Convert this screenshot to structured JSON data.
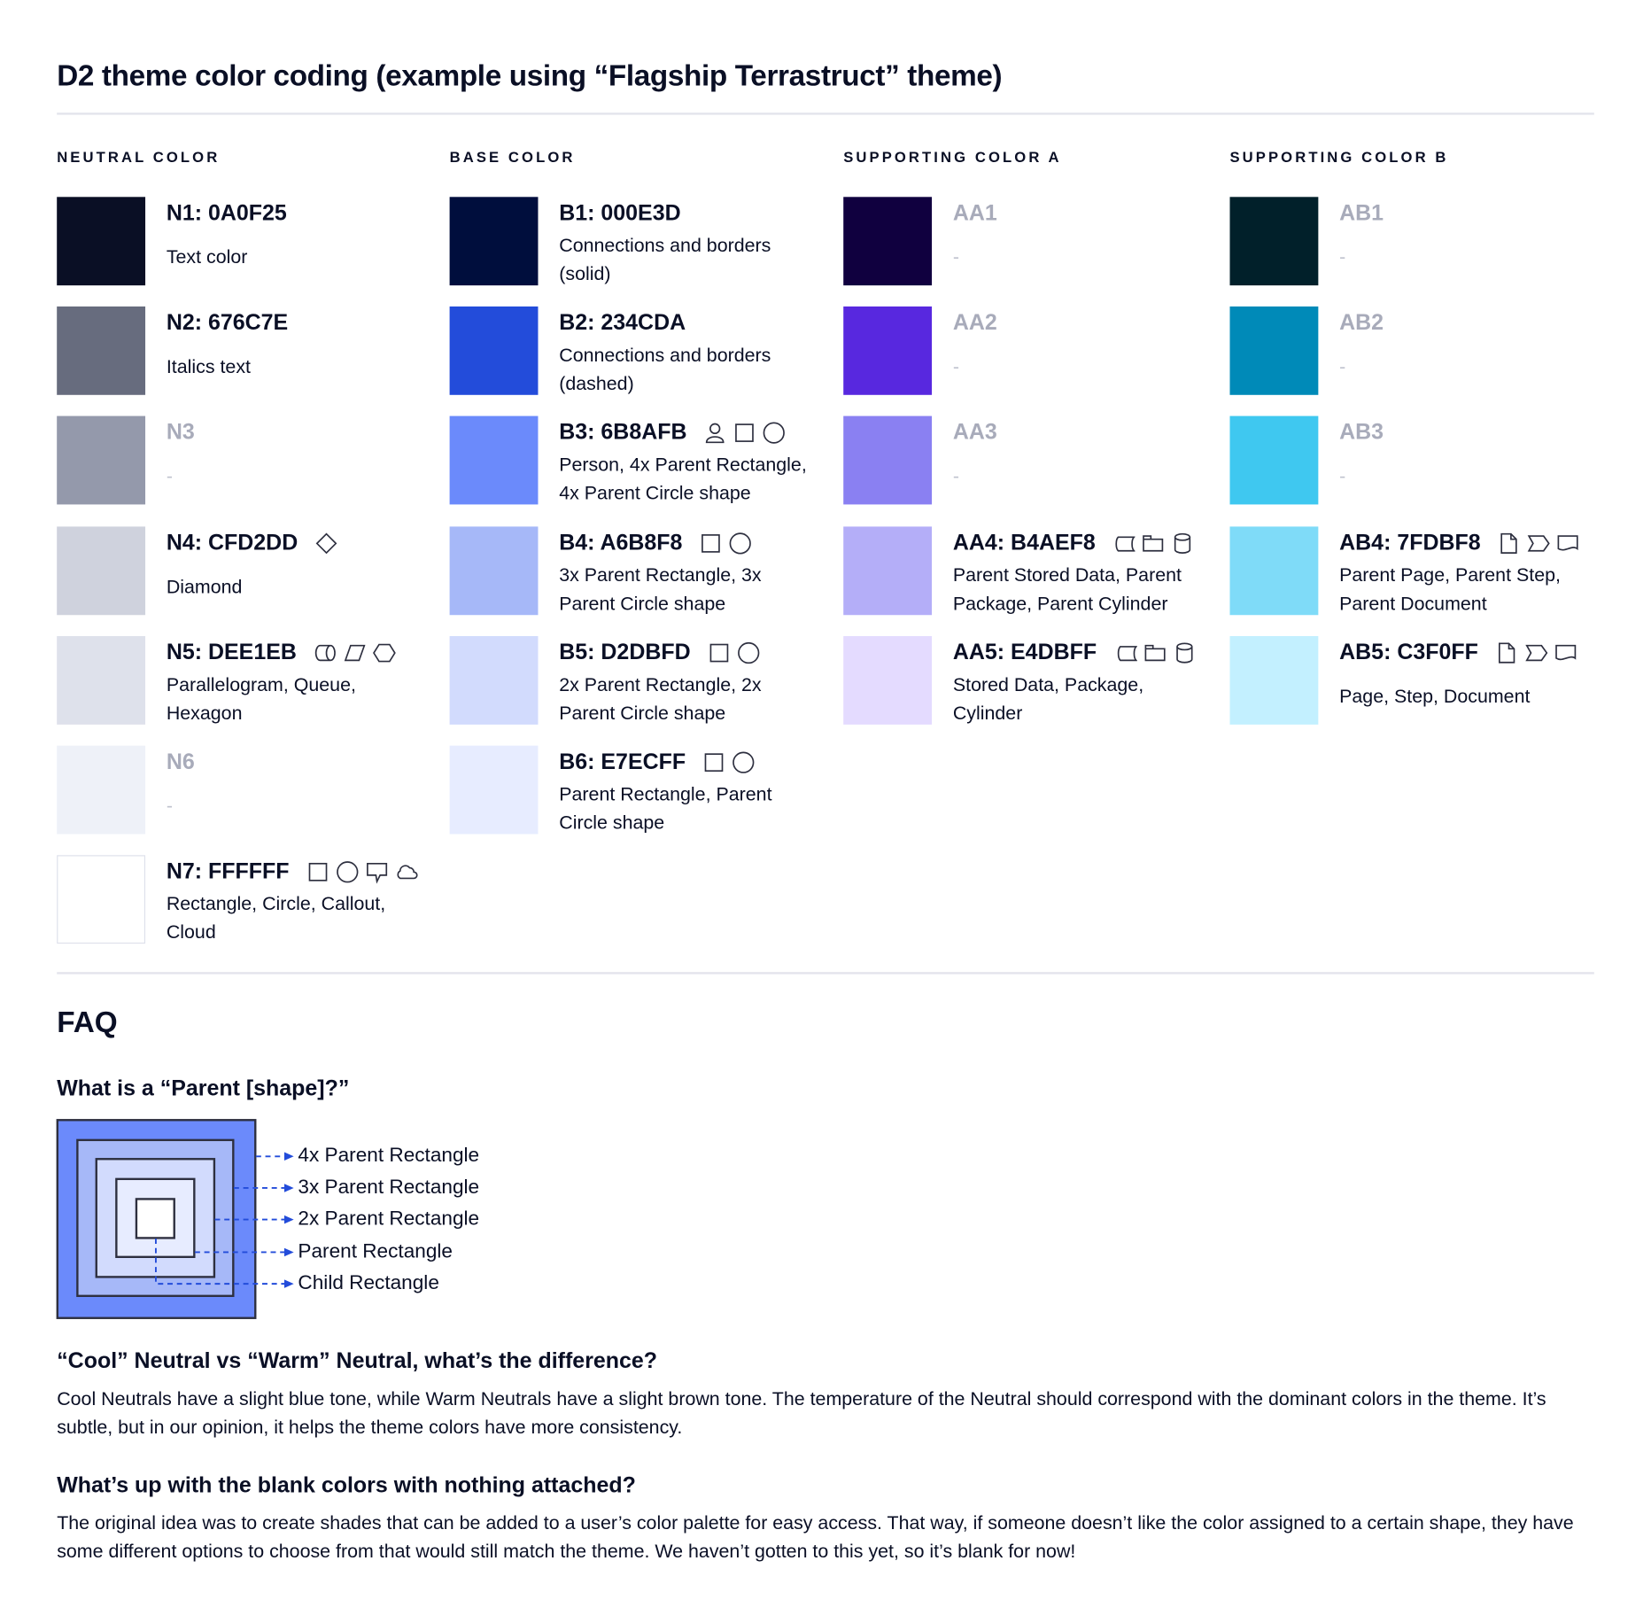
{
  "title": "D2 theme color coding (example using “Flagship Terrastruct” theme)",
  "columns": [
    {
      "header": "NEUTRAL COLOR",
      "rows": [
        {
          "label": "N1: 0A0F25",
          "desc": "Text color",
          "color": "#0A0F25",
          "icons": []
        },
        {
          "label": "N2: 676C7E",
          "desc": "Italics text",
          "color": "#676C7E",
          "icons": []
        },
        {
          "label": "N3",
          "desc": "-",
          "color": "#9499AB",
          "icons": [],
          "muted": true
        },
        {
          "label": "N4: CFD2DD",
          "desc": "Diamond",
          "color": "#CFD2DD",
          "icons": [
            "diamond"
          ]
        },
        {
          "label": "N5: DEE1EB",
          "desc": "Parallelogram, Queue, Hexagon",
          "color": "#DEE1EB",
          "icons": [
            "queue",
            "parallelogram",
            "hexagon"
          ]
        },
        {
          "label": "N6",
          "desc": "-",
          "color": "#EEF1F8",
          "icons": [],
          "muted": true
        },
        {
          "label": "N7: FFFFFF",
          "desc": "Rectangle, Circle, Callout, Cloud",
          "color": "#FFFFFF",
          "icons": [
            "rectangle",
            "circle",
            "callout",
            "cloud"
          ]
        }
      ]
    },
    {
      "header": "BASE COLOR",
      "rows": [
        {
          "label": "B1: 000E3D",
          "desc": "Connections and borders (solid)",
          "color": "#000E3D",
          "icons": []
        },
        {
          "label": "B2: 234CDA",
          "desc": "Connections and borders (dashed)",
          "color": "#234CDA",
          "icons": []
        },
        {
          "label": "B3: 6B8AFB",
          "desc": "Person, 4x Parent Rectangle, 4x Parent Circle shape",
          "color": "#6B8AFB",
          "icons": [
            "person",
            "rectangle",
            "circle"
          ]
        },
        {
          "label": "B4: A6B8F8",
          "desc": "3x Parent Rectangle, 3x Parent Circle shape",
          "color": "#A6B8F8",
          "icons": [
            "rectangle",
            "circle"
          ]
        },
        {
          "label": "B5: D2DBFD",
          "desc": "2x Parent Rectangle, 2x Parent Circle shape",
          "color": "#D2DBFD",
          "icons": [
            "rectangle",
            "circle"
          ]
        },
        {
          "label": "B6: E7ECFF",
          "desc": "Parent Rectangle, Parent Circle shape",
          "color": "#E7ECFF",
          "icons": [
            "rectangle",
            "circle"
          ]
        }
      ]
    },
    {
      "header": "SUPPORTING COLOR A",
      "rows": [
        {
          "label": "AA1",
          "desc": "-",
          "color": "#10003F",
          "icons": [],
          "muted": true
        },
        {
          "label": "AA2",
          "desc": "-",
          "color": "#5828DF",
          "icons": [],
          "muted": true
        },
        {
          "label": "AA3",
          "desc": "-",
          "color": "#8A80F2",
          "icons": [],
          "muted": true
        },
        {
          "label": "AA4: B4AEF8",
          "desc": "Parent Stored Data, Parent Package,  Parent Cylinder",
          "color": "#B4AEF8",
          "icons": [
            "stored-data",
            "package",
            "cylinder"
          ]
        },
        {
          "label": "AA5: E4DBFF",
          "desc": "Stored Data, Package, Cylinder",
          "color": "#E4DBFF",
          "icons": [
            "stored-data",
            "package",
            "cylinder"
          ]
        }
      ]
    },
    {
      "header": "SUPPORTING COLOR B",
      "rows": [
        {
          "label": "AB1",
          "desc": "-",
          "color": "#01202A",
          "icons": [],
          "muted": true
        },
        {
          "label": "AB2",
          "desc": "-",
          "color": "#008AB8",
          "icons": [],
          "muted": true
        },
        {
          "label": "AB3",
          "desc": "-",
          "color": "#3FC8F0",
          "icons": [],
          "muted": true
        },
        {
          "label": "AB4: 7FDBF8",
          "desc": "Parent Page, Parent Step, Parent Document",
          "color": "#7FDBF8",
          "icons": [
            "page",
            "step",
            "document"
          ]
        },
        {
          "label": "AB5: C3F0FF",
          "desc": "Page, Step, Document",
          "color": "#C3F0FF",
          "icons": [
            "page",
            "step",
            "document"
          ]
        }
      ]
    }
  ],
  "faq": {
    "heading": "FAQ",
    "q1": "What is a “Parent [shape]?”",
    "diagram_labels": [
      "4x Parent Rectangle",
      "3x Parent Rectangle",
      "2x Parent Rectangle",
      "Parent Rectangle",
      "Child Rectangle"
    ],
    "diagram_colors": [
      "#6B8AFB",
      "#A6B8F8",
      "#D2DBFD",
      "#E7ECFF",
      "#FFFFFF"
    ],
    "arrow_color": "#234CDA",
    "q2": "“Cool” Neutral vs “Warm” Neutral, what’s the difference?",
    "a2": "Cool Neutrals have a slight blue tone, while Warm Neutrals have a slight brown tone. The temperature of the Neutral should correspond with the dominant colors in the theme. It’s subtle, but in our opinion, it helps the theme colors have more consistency.",
    "q3": "What’s up with the blank colors with nothing attached?",
    "a3": "The original idea was to create shades that can be added to a user’s color palette for easy access. That way, if someone doesn’t like the color assigned to a certain shape, they have some different options to choose from that would still match the theme. We haven’t gotten to this yet, so it’s blank for now!"
  }
}
